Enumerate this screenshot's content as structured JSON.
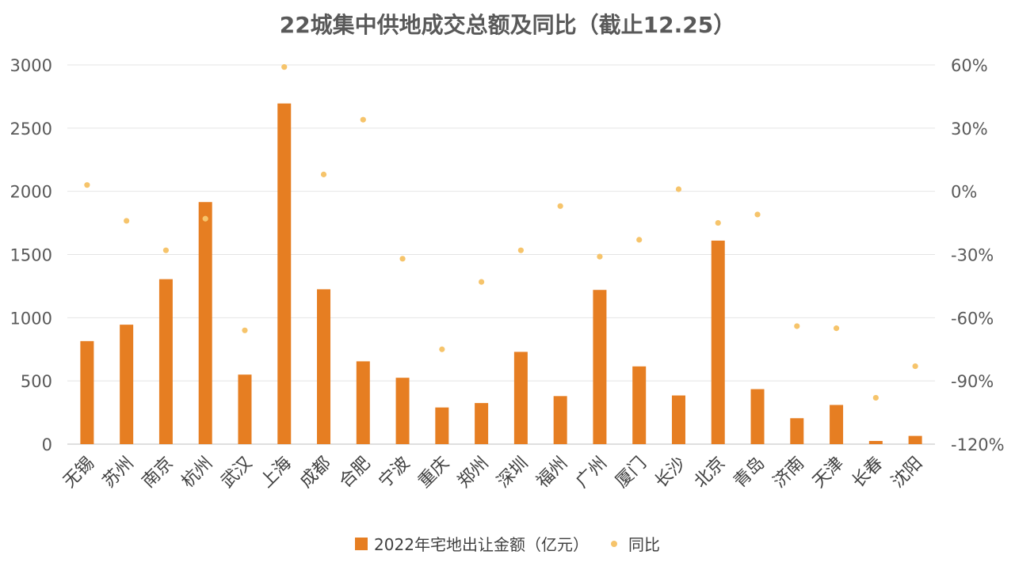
{
  "chart_data": {
    "type": "bar",
    "title": "22城集中供地成交总额及同比（截止12.25）",
    "categories": [
      "无锡",
      "苏州",
      "南京",
      "杭州",
      "武汉",
      "上海",
      "成都",
      "合肥",
      "宁波",
      "重庆",
      "郑州",
      "深圳",
      "福州",
      "广州",
      "厦门",
      "长沙",
      "北京",
      "青岛",
      "济南",
      "天津",
      "长春",
      "沈阳"
    ],
    "series": [
      {
        "name": "2022年宅地出让金额（亿元）",
        "type": "bar",
        "axis": "left",
        "color": "#E67E22",
        "values": [
          815,
          945,
          1305,
          1915,
          550,
          2695,
          1225,
          655,
          525,
          290,
          325,
          730,
          380,
          1220,
          615,
          385,
          1610,
          435,
          205,
          310,
          25,
          65
        ]
      },
      {
        "name": "同比",
        "type": "scatter",
        "axis": "right",
        "color": "#F6C46B",
        "values": [
          3,
          -14,
          -28,
          -13,
          -66,
          59,
          8,
          34,
          -32,
          -75,
          -43,
          -28,
          -7,
          -31,
          -23,
          1,
          -15,
          -11,
          -64,
          -65,
          -98,
          -83
        ]
      }
    ],
    "y_left": {
      "ylim": [
        0,
        3000
      ],
      "ticks": [
        "0",
        "500",
        "1000",
        "1500",
        "2000",
        "2500",
        "3000"
      ]
    },
    "y_right": {
      "ylim": [
        -120,
        60
      ],
      "ticks": [
        "-120%",
        "-90%",
        "-60%",
        "-30%",
        "0%",
        "30%",
        "60%"
      ]
    },
    "grid": true,
    "legend_position": "bottom"
  }
}
